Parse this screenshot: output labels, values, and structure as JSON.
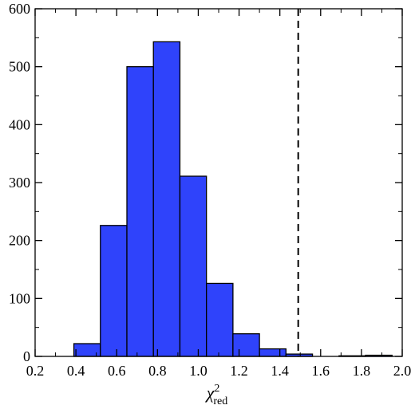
{
  "chart_data": {
    "type": "bar",
    "subtype": "histogram",
    "title": "",
    "xlabel": {
      "base": "χ",
      "superscript": "2",
      "subscript": "red"
    },
    "ylabel": "",
    "xlim": [
      0.2,
      2.0
    ],
    "ylim": [
      0,
      600
    ],
    "x_ticks": [
      0.2,
      0.4,
      0.6,
      0.8,
      1.0,
      1.2,
      1.4,
      1.6,
      1.8,
      2.0
    ],
    "x_tick_labels": [
      "0.2",
      "0.4",
      "0.6",
      "0.8",
      "1.0",
      "1.2",
      "1.4",
      "1.6",
      "1.8",
      "2.0"
    ],
    "y_ticks": [
      0,
      100,
      200,
      300,
      400,
      500,
      600
    ],
    "y_tick_labels": [
      "0",
      "100",
      "200",
      "300",
      "400",
      "500",
      "600"
    ],
    "bins": [
      {
        "x0": 0.39,
        "x1": 0.52,
        "value": 22
      },
      {
        "x0": 0.52,
        "x1": 0.65,
        "value": 226
      },
      {
        "x0": 0.65,
        "x1": 0.78,
        "value": 500
      },
      {
        "x0": 0.78,
        "x1": 0.91,
        "value": 543
      },
      {
        "x0": 0.91,
        "x1": 1.04,
        "value": 311
      },
      {
        "x0": 1.04,
        "x1": 1.17,
        "value": 126
      },
      {
        "x0": 1.17,
        "x1": 1.3,
        "value": 39
      },
      {
        "x0": 1.3,
        "x1": 1.43,
        "value": 13
      },
      {
        "x0": 1.43,
        "x1": 1.56,
        "value": 4
      },
      {
        "x0": 1.56,
        "x1": 1.69,
        "value": 0
      },
      {
        "x0": 1.69,
        "x1": 1.82,
        "value": 1
      },
      {
        "x0": 1.82,
        "x1": 1.95,
        "value": 2
      }
    ],
    "reference_line": {
      "x": 1.49,
      "style": "dashed",
      "color": "#000000"
    },
    "bar_color": "#2f43fb",
    "edge_color": "#000000",
    "grid": false,
    "ticks_on_all_sides": true
  }
}
